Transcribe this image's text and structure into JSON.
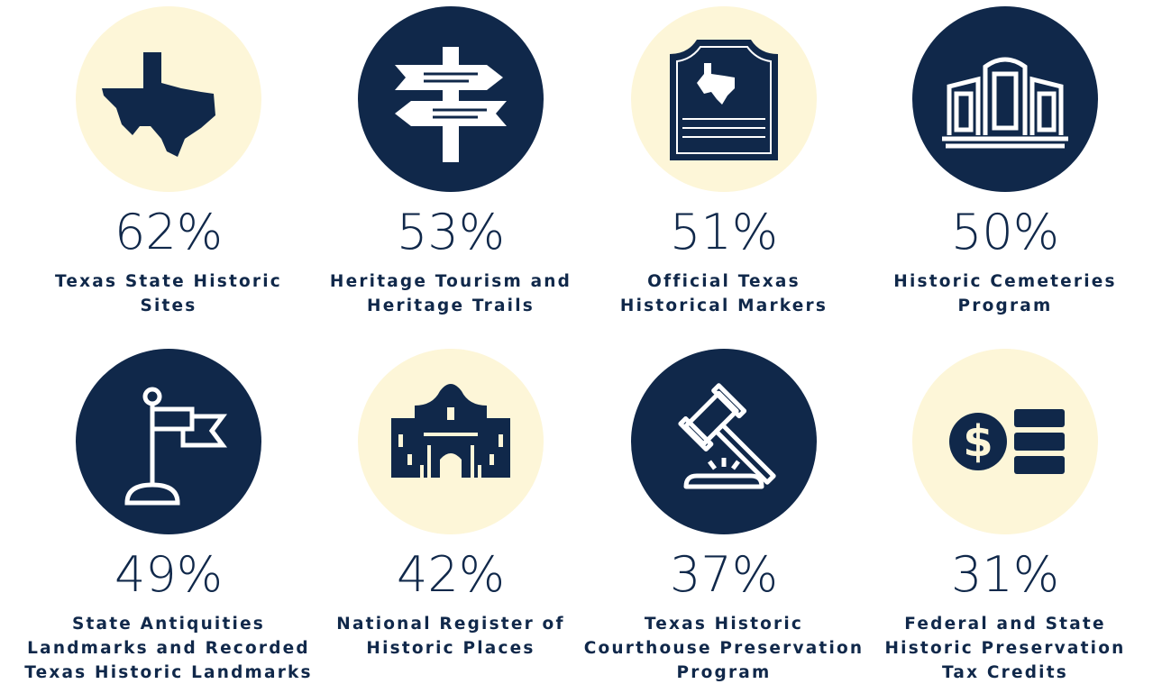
{
  "items": [
    {
      "percent": "62%",
      "label": [
        "Texas State Historic",
        "Sites"
      ]
    },
    {
      "percent": "53%",
      "label": [
        "Heritage Tourism and",
        "Heritage Trails"
      ]
    },
    {
      "percent": "51%",
      "label": [
        "Official Texas",
        "Historical Markers"
      ]
    },
    {
      "percent": "50%",
      "label": [
        "Historic Cemeteries",
        "Program"
      ]
    },
    {
      "percent": "49%",
      "label": [
        "State Antiquities",
        "Landmarks and Recorded",
        "Texas Historic Landmarks"
      ]
    },
    {
      "percent": "42%",
      "label": [
        "National Register of",
        "Historic Places"
      ]
    },
    {
      "percent": "37%",
      "label": [
        "Texas Historic",
        "Courthouse Preservation",
        "Program"
      ]
    },
    {
      "percent": "31%",
      "label": [
        "Federal and State",
        "Historic Preservation",
        "Tax Credits"
      ]
    }
  ]
}
